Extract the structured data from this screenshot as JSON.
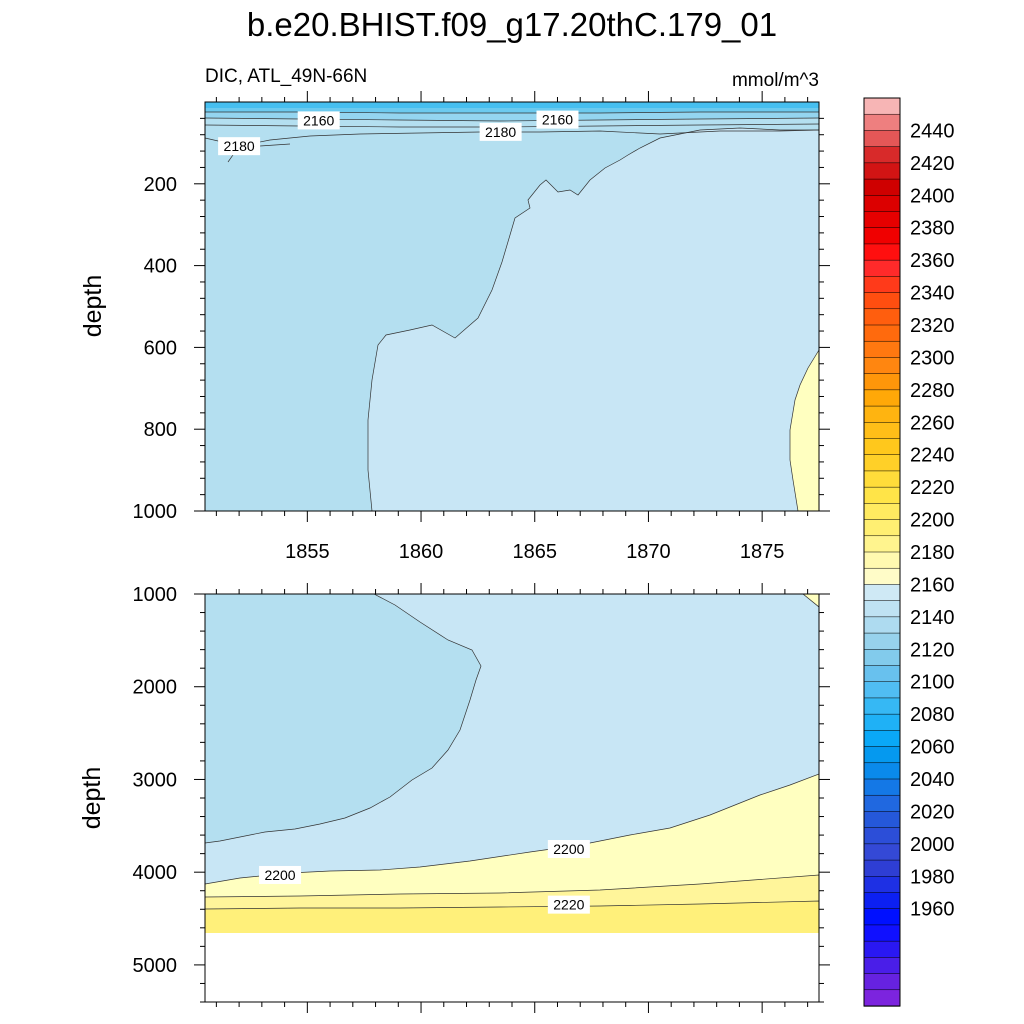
{
  "title": "b.e20.BHIST.f09_g17.20thC.179_01",
  "subtitle_left": "DIC, ATL_49N-66N",
  "subtitle_right": "mmol/m^3",
  "chart_data": [
    {
      "type": "contour",
      "panel": "upper",
      "ylabel": "depth",
      "xlim": [
        1850.5,
        1877.5
      ],
      "ylim": [
        1000,
        0
      ],
      "x_ticks": [
        1855,
        1860,
        1865,
        1870,
        1875
      ],
      "y_ticks": [
        200,
        400,
        600,
        800,
        1000
      ],
      "fill_regions": [
        {
          "level_range": [
            2170,
            2180
          ],
          "color": "#b4dff0",
          "region": "background, western and upper water column"
        },
        {
          "level_range": [
            2140,
            2150
          ],
          "color": "#46bff0",
          "region": "surface layer above ~20 m"
        },
        {
          "level_range": [
            2150,
            2160
          ],
          "color": "#6ccaef",
          "region": "~20-35 m"
        },
        {
          "level_range": [
            2160,
            2170
          ],
          "color": "#94d5f0",
          "region": "~35-60 m"
        },
        {
          "level_range": [
            2180,
            2200
          ],
          "color": "#c8e6f5",
          "region": "eastern interior from ~1858"
        },
        {
          "level_range": [
            2200,
            2210
          ],
          "color": "#ffffc0",
          "region": "far east deep, after ~1876"
        }
      ],
      "contour_labels": [
        {
          "text": "2160",
          "x": 1855.5,
          "depth": 45
        },
        {
          "text": "2160",
          "x": 1866.0,
          "depth": 43
        },
        {
          "text": "2180",
          "x": 1863.5,
          "depth": 73
        },
        {
          "text": "2180",
          "x": 1852.0,
          "depth": 108
        }
      ]
    },
    {
      "type": "contour",
      "panel": "lower",
      "ylabel": "depth",
      "xlim": [
        1850.5,
        1877.5
      ],
      "ylim": [
        5400,
        1000
      ],
      "x_ticks": [
        1855,
        1860,
        1865,
        1870,
        1875
      ],
      "y_ticks": [
        1000,
        2000,
        3000,
        4000,
        5000
      ],
      "fill_regions": [
        {
          "level_range": [
            2180,
            2200
          ],
          "color": "#c8e6f5",
          "region": "background mid-depth"
        },
        {
          "level_range": [
            2170,
            2180
          ],
          "color": "#b4dff0",
          "region": "western lobe 1000-3700 m"
        },
        {
          "level_range": [
            2200,
            2210
          ],
          "color": "#ffffc0",
          "region": "bottom layer from ~3000-4100 m"
        },
        {
          "level_range": [
            2210,
            2220
          ],
          "color": "#fff59a",
          "region": "~4200-4400 m"
        },
        {
          "level_range": [
            2220,
            2230
          ],
          "color": "#fff07a",
          "region": "~4400-4600 m"
        }
      ],
      "no_data_below_depth": 4620,
      "contour_labels": [
        {
          "text": "2200",
          "x": 1853.8,
          "depth": 4030
        },
        {
          "text": "2200",
          "x": 1866.5,
          "depth": 3750
        },
        {
          "text": "2220",
          "x": 1866.5,
          "depth": 4350
        }
      ]
    },
    {
      "type": "colorbar",
      "orientation": "vertical",
      "units": "mmol/m^3",
      "labels": [
        2440,
        2420,
        2400,
        2380,
        2360,
        2340,
        2320,
        2300,
        2280,
        2260,
        2240,
        2220,
        2200,
        2180,
        2160,
        2140,
        2120,
        2100,
        2080,
        2060,
        2040,
        2020,
        2000,
        1980,
        1960
      ],
      "colors_top_to_bottom": [
        "#f7b5b5",
        "#ee7f7f",
        "#e45757",
        "#d82a2a",
        "#d21414",
        "#cf0000",
        "#dc0000",
        "#e60000",
        "#f00000",
        "#ff0f0f",
        "#ff2a2a",
        "#ff3a1a",
        "#ff4e10",
        "#ff5e0e",
        "#ff6a0d",
        "#ff7810",
        "#ff8610",
        "#ff960a",
        "#ffa808",
        "#ffb410",
        "#ffbe18",
        "#ffc81c",
        "#ffd028",
        "#ffdc3a",
        "#ffe448",
        "#ffea60",
        "#ffef72",
        "#fff48e",
        "#fff9b0",
        "#fffcc8",
        "#cfe9f5",
        "#bfe2f3",
        "#aedbf0",
        "#97d2ec",
        "#82cbec",
        "#68c1ee",
        "#50bdf3",
        "#36b8f4",
        "#1fb1f6",
        "#0aa8f7",
        "#0599ef",
        "#0a8aeb",
        "#1478e6",
        "#2068e0",
        "#2558da",
        "#2c4ed8",
        "#3449d6",
        "#2e3ed4",
        "#1e30e4",
        "#0c20f2",
        "#0010ff",
        "#1010ff",
        "#2a18f2",
        "#4a1ee8",
        "#6622e0",
        "#7c24de"
      ]
    }
  ]
}
